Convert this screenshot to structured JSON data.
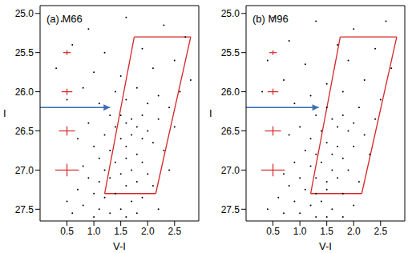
{
  "chart_data": [
    {
      "type": "scatter",
      "title": "(a) M66",
      "x_label": "V-I",
      "y_label": "I",
      "xlim": [
        0.0,
        2.95
      ],
      "ylim": [
        27.65,
        24.9
      ],
      "xticks": [
        0.5,
        {
          "value": 1,
          "label": "1.0"
        },
        1.5,
        {
          "value": 2,
          "label": "2.0"
        },
        2.5
      ],
      "yticks": [
        {
          "value": 25,
          "label": "25.0"
        },
        25.5,
        {
          "value": 26,
          "label": "26.0"
        },
        26.5,
        {
          "value": 27,
          "label": "27.0"
        },
        27.5
      ],
      "color": "#000000",
      "marker": "dot",
      "x": [
        0.4,
        0.9,
        1.6,
        2.3,
        2.7,
        0.6,
        1.2,
        1.9,
        2.5,
        0.3,
        1.0,
        1.5,
        2.1,
        2.8,
        0.8,
        1.4,
        1.8,
        2.2,
        2.6,
        0.5,
        1.1,
        1.6,
        2.0,
        2.4,
        1.3,
        1.5,
        1.7,
        1.9,
        2.2,
        0.9,
        1.4,
        1.6,
        1.8,
        2.0,
        2.5,
        1.2,
        1.5,
        1.7,
        1.9,
        2.1,
        0.7,
        1.0,
        1.3,
        1.6,
        1.8,
        2.3,
        1.1,
        1.4,
        1.6,
        1.9,
        0.8,
        1.2,
        1.5,
        1.7,
        2.0,
        2.4,
        0.9,
        1.1,
        1.3,
        1.6,
        1.8,
        2.1,
        0.7,
        1.0,
        1.2,
        1.4,
        1.7,
        1.9,
        0.5,
        0.8,
        1.1,
        1.3,
        1.5,
        1.6,
        1.0,
        0.6,
        1.8,
        2.2
      ],
      "values": [
        25.1,
        25.2,
        25.05,
        25.15,
        25.3,
        25.4,
        25.5,
        25.45,
        25.6,
        25.7,
        25.75,
        25.8,
        25.7,
        25.85,
        25.95,
        26.0,
        25.95,
        26.05,
        26.0,
        26.1,
        26.15,
        26.1,
        26.15,
        26.2,
        26.3,
        26.3,
        26.35,
        26.3,
        26.35,
        26.4,
        26.45,
        26.4,
        26.45,
        26.5,
        26.45,
        26.55,
        26.6,
        26.55,
        26.6,
        26.65,
        26.6,
        26.7,
        26.75,
        26.7,
        26.8,
        26.75,
        26.85,
        26.9,
        26.85,
        26.9,
        26.95,
        27.0,
        27.05,
        27.0,
        27.05,
        27.0,
        27.1,
        27.15,
        27.1,
        27.2,
        27.15,
        27.2,
        27.25,
        27.3,
        27.35,
        27.3,
        27.4,
        27.35,
        27.4,
        27.45,
        27.5,
        27.55,
        27.5,
        27.6,
        27.6,
        27.55,
        27.55,
        27.5
      ],
      "error_bars": {
        "x": [
          0.5,
          0.5,
          0.5,
          0.5
        ],
        "y": [
          25.5,
          26.0,
          26.5,
          27.0
        ],
        "x_err": [
          0.07,
          0.1,
          0.15,
          0.22
        ],
        "y_err": [
          0.03,
          0.04,
          0.06,
          0.08
        ],
        "color": "#d62728"
      },
      "box": {
        "x": [
          1.75,
          2.8,
          2.15,
          1.2
        ],
        "y": [
          25.3,
          25.3,
          27.3,
          27.3
        ],
        "color": "#d62728"
      },
      "arrow": {
        "y": 26.2,
        "x_end": 1.3,
        "color": "#3a6fb5"
      }
    },
    {
      "type": "scatter",
      "title": "(b) M96",
      "x_label": "V-I",
      "y_label": "I",
      "xlim": [
        0.0,
        2.95
      ],
      "ylim": [
        27.65,
        24.9
      ],
      "xticks": [
        0.5,
        {
          "value": 1,
          "label": "1.0"
        },
        1.5,
        {
          "value": 2,
          "label": "2.0"
        },
        2.5
      ],
      "yticks": [
        {
          "value": 25,
          "label": "25.0"
        },
        25.5,
        {
          "value": 26,
          "label": "26.0"
        },
        26.5,
        {
          "value": 27,
          "label": "27.0"
        },
        27.5
      ],
      "color": "#000000",
      "marker": "dot",
      "x": [
        0.5,
        1.3,
        2.0,
        2.6,
        0.8,
        1.7,
        2.4,
        0.4,
        1.1,
        1.9,
        2.7,
        0.7,
        1.5,
        2.2,
        0.3,
        1.2,
        1.8,
        2.5,
        0.9,
        1.5,
        2.1,
        1.3,
        1.6,
        1.8,
        2.0,
        2.4,
        1.0,
        1.4,
        1.7,
        1.9,
        2.2,
        0.8,
        1.2,
        1.5,
        1.7,
        2.0,
        1.1,
        1.3,
        1.6,
        1.8,
        2.3,
        0.9,
        1.2,
        1.4,
        1.6,
        1.9,
        0.7,
        1.0,
        1.3,
        1.5,
        1.7,
        2.1,
        0.8,
        1.1,
        1.3,
        1.5,
        1.8,
        0.6,
        0.9,
        1.2,
        1.4,
        1.6,
        2.0,
        0.7,
        1.0,
        1.3,
        1.5,
        1.8,
        0.4
      ],
      "values": [
        25.05,
        25.1,
        25.2,
        25.1,
        25.35,
        25.4,
        25.45,
        25.6,
        25.65,
        25.6,
        25.7,
        25.85,
        25.9,
        25.85,
        26.0,
        26.05,
        26.0,
        26.1,
        26.15,
        26.2,
        26.2,
        26.3,
        26.35,
        26.3,
        26.4,
        26.35,
        26.45,
        26.5,
        26.45,
        26.5,
        26.55,
        26.55,
        26.6,
        26.65,
        26.7,
        26.7,
        26.75,
        26.8,
        26.8,
        26.85,
        26.8,
        26.9,
        26.95,
        26.9,
        27.0,
        27.0,
        27.05,
        27.1,
        27.1,
        27.15,
        27.1,
        27.15,
        27.2,
        27.25,
        27.3,
        27.25,
        27.3,
        27.35,
        27.4,
        27.45,
        27.4,
        27.5,
        27.45,
        27.55,
        27.55,
        27.6,
        27.6,
        27.6,
        27.5
      ],
      "error_bars": {
        "x": [
          0.5,
          0.5,
          0.5,
          0.5
        ],
        "y": [
          25.5,
          26.0,
          26.5,
          27.0
        ],
        "x_err": [
          0.07,
          0.1,
          0.15,
          0.22
        ],
        "y_err": [
          0.03,
          0.04,
          0.06,
          0.08
        ],
        "color": "#d62728"
      },
      "box": {
        "x": [
          1.75,
          2.8,
          2.15,
          1.2
        ],
        "y": [
          25.3,
          25.3,
          27.3,
          27.3
        ],
        "color": "#d62728"
      },
      "arrow": {
        "y": 26.2,
        "x_end": 1.35,
        "color": "#3a6fb5"
      }
    }
  ]
}
